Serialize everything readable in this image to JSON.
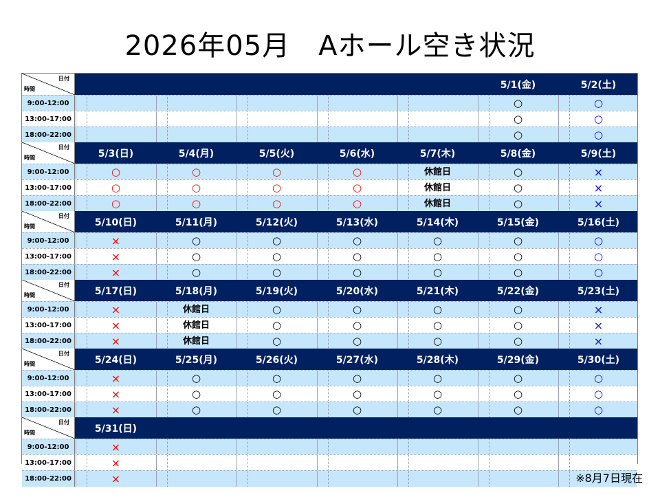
{
  "title": "2026年05月　Aホール空き状況",
  "corner": {
    "date": "日付",
    "time": "時間"
  },
  "time_slots": [
    "9:00-12:00",
    "13:00-17:00",
    "18:00-22:00"
  ],
  "weeks": [
    {
      "days": [
        "",
        "",
        "",
        "",
        "",
        "5/1(金)",
        "5/2(土)"
      ],
      "cells": [
        [
          "",
          "",
          "",
          "",
          "",
          "ok",
          "ok-blue"
        ],
        [
          "",
          "",
          "",
          "",
          "",
          "ok",
          "ok-blue"
        ],
        [
          "",
          "",
          "",
          "",
          "",
          "ok",
          "ok-blue"
        ]
      ]
    },
    {
      "days": [
        "5/3(日)",
        "5/4(月)",
        "5/5(火)",
        "5/6(水)",
        "5/7(木)",
        "5/8(金)",
        "5/9(土)"
      ],
      "cells": [
        [
          "ok-red",
          "ok-red",
          "ok-red",
          "ok-red",
          "closed",
          "ok",
          "ng-blue"
        ],
        [
          "ok-red",
          "ok-red",
          "ok-red",
          "ok-red",
          "closed",
          "ok",
          "ng-blue"
        ],
        [
          "ok-red",
          "ok-red",
          "ok-red",
          "ok-red",
          "closed",
          "ok",
          "ng-blue"
        ]
      ]
    },
    {
      "days": [
        "5/10(日)",
        "5/11(月)",
        "5/12(火)",
        "5/13(水)",
        "5/14(木)",
        "5/15(金)",
        "5/16(土)"
      ],
      "cells": [
        [
          "ng-red",
          "ok",
          "ok",
          "ok",
          "ok",
          "ok",
          "ok-blue"
        ],
        [
          "ng-red",
          "ok",
          "ok",
          "ok",
          "ok",
          "ok",
          "ok-blue"
        ],
        [
          "ng-red",
          "ok",
          "ok",
          "ok",
          "ok",
          "ok",
          "ok-blue"
        ]
      ]
    },
    {
      "days": [
        "5/17(日)",
        "5/18(月)",
        "5/19(火)",
        "5/20(水)",
        "5/21(木)",
        "5/22(金)",
        "5/23(土)"
      ],
      "cells": [
        [
          "ng-red",
          "closed",
          "ok",
          "ok",
          "ok",
          "ok",
          "ng-blue"
        ],
        [
          "ng-red",
          "closed",
          "ok",
          "ok",
          "ok",
          "ok",
          "ng-blue"
        ],
        [
          "ng-red",
          "closed",
          "ok",
          "ok",
          "ok",
          "ok",
          "ng-blue"
        ]
      ]
    },
    {
      "days": [
        "5/24(日)",
        "5/25(月)",
        "5/26(火)",
        "5/27(水)",
        "5/28(木)",
        "5/29(金)",
        "5/30(土)"
      ],
      "cells": [
        [
          "ng-red",
          "ok",
          "ok",
          "ok",
          "ok",
          "ok",
          "ok-blue"
        ],
        [
          "ng-red",
          "ok",
          "ok",
          "ok",
          "ok",
          "ok",
          "ok-blue"
        ],
        [
          "ng-red",
          "ok",
          "ok",
          "ok",
          "ok",
          "ok",
          "ok-blue"
        ]
      ]
    },
    {
      "days": [
        "5/31(日)",
        "",
        "",
        "",
        "",
        "",
        ""
      ],
      "cells": [
        [
          "ng-red",
          "",
          "",
          "",
          "",
          "",
          ""
        ],
        [
          "ng-red",
          "",
          "",
          "",
          "",
          "",
          ""
        ],
        [
          "ng-red",
          "",
          "",
          "",
          "",
          "",
          ""
        ]
      ]
    }
  ],
  "symbols": {
    "ok": "○",
    "ok-red": "○",
    "ok-blue": "○",
    "ng-red": "×",
    "ng-blue": "×",
    "closed": "休館日"
  },
  "colors": {
    "header_bg": "#002060",
    "row_blue": "#c6e6fc",
    "available_weekend": "#0000ff",
    "holiday_red": "#ff0000"
  },
  "footnote": "※8月7日現在"
}
